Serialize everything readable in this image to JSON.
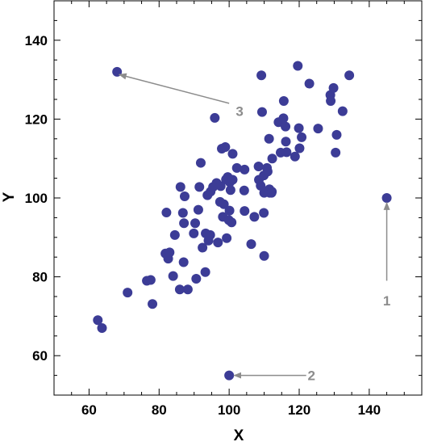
{
  "chart_data": {
    "type": "scatter",
    "xlabel": "X",
    "ylabel": "Y",
    "xlim": [
      50,
      155
    ],
    "ylim": [
      50,
      150
    ],
    "xticks": [
      60,
      80,
      100,
      120,
      140
    ],
    "yticks": [
      60,
      80,
      100,
      120,
      140
    ],
    "grid": false,
    "colors": {
      "point": "#3c3c96",
      "annotation": "#8c8c8c"
    },
    "points": [
      [
        62.5,
        69
      ],
      [
        63.7,
        67
      ],
      [
        71,
        76
      ],
      [
        76.5,
        79
      ],
      [
        77.6,
        79.2
      ],
      [
        78.1,
        73.1
      ],
      [
        81.8,
        85.9
      ],
      [
        82.1,
        96.3
      ],
      [
        82.6,
        84.6
      ],
      [
        83,
        86.2
      ],
      [
        84,
        80.2
      ],
      [
        84.5,
        90.6
      ],
      [
        85.9,
        76.8
      ],
      [
        86.1,
        102.8
      ],
      [
        86.8,
        96.2
      ],
      [
        87.1,
        93.6
      ],
      [
        87,
        83.7
      ],
      [
        87.3,
        100.4
      ],
      [
        88.2,
        76.8
      ],
      [
        89.9,
        91
      ],
      [
        90.3,
        93.6
      ],
      [
        90.6,
        79.5
      ],
      [
        91.2,
        97
      ],
      [
        91.5,
        102.8
      ],
      [
        91.9,
        108.9
      ],
      [
        92.4,
        87.4
      ],
      [
        93.2,
        81.2
      ],
      [
        93.3,
        91
      ],
      [
        93.8,
        100.7
      ],
      [
        94.1,
        89.2
      ],
      [
        94.6,
        90.6
      ],
      [
        94.7,
        101.6
      ],
      [
        95.4,
        102.8
      ],
      [
        95.9,
        120.3
      ],
      [
        96.4,
        103.8
      ],
      [
        96.8,
        88.7
      ],
      [
        97.4,
        99
      ],
      [
        97.6,
        103
      ],
      [
        97.9,
        112.5
      ],
      [
        98.2,
        95.2
      ],
      [
        98.5,
        98.4
      ],
      [
        98.9,
        112.9
      ],
      [
        99.1,
        104.7
      ],
      [
        99.3,
        89.8
      ],
      [
        99.6,
        105.3
      ],
      [
        99.9,
        94.4
      ],
      [
        100.1,
        96.8
      ],
      [
        100.2,
        104
      ],
      [
        100.4,
        102
      ],
      [
        100.7,
        93.8
      ],
      [
        101,
        111.2
      ],
      [
        101,
        104.6
      ],
      [
        102.2,
        107.6
      ],
      [
        104.3,
        101.9
      ],
      [
        104.4,
        96.7
      ],
      [
        104.4,
        107.2
      ],
      [
        106.3,
        88.3
      ],
      [
        107.2,
        95.2
      ],
      [
        108.4,
        108
      ],
      [
        108.5,
        104.6
      ],
      [
        109,
        103.1
      ],
      [
        109.2,
        131.1
      ],
      [
        109.4,
        121.8
      ],
      [
        109.9,
        105.7
      ],
      [
        109.9,
        96.2
      ],
      [
        110,
        85.3
      ],
      [
        110,
        101.3
      ],
      [
        110.8,
        107.6
      ],
      [
        111,
        106.7
      ],
      [
        111.4,
        115
      ],
      [
        111.5,
        102.2
      ],
      [
        111.6,
        101.3
      ],
      [
        112.1,
        101.3
      ],
      [
        112.2,
        101.6
      ],
      [
        112.3,
        110
      ],
      [
        114.1,
        119.2
      ],
      [
        114.7,
        111.5
      ],
      [
        115.5,
        120.2
      ],
      [
        115.6,
        124.6
      ],
      [
        116.1,
        118.1
      ],
      [
        116.2,
        114.3
      ],
      [
        116.4,
        111.6
      ],
      [
        118.8,
        110.5
      ],
      [
        119.6,
        133.5
      ],
      [
        119.9,
        117.7
      ],
      [
        120.1,
        112.6
      ],
      [
        120.7,
        115.4
      ],
      [
        122.9,
        129
      ],
      [
        125.4,
        117.6
      ],
      [
        128.9,
        126.1
      ],
      [
        129,
        124.6
      ],
      [
        129.8,
        127.9
      ],
      [
        130.4,
        111.5
      ],
      [
        130.7,
        116
      ],
      [
        132.4,
        122
      ],
      [
        134.3,
        131.1
      ],
      [
        68,
        132
      ],
      [
        145,
        100
      ],
      [
        100,
        55
      ]
    ],
    "annotations": [
      {
        "label": "3",
        "text_x": 103,
        "text_y": 122,
        "arrow_from": [
          100,
          124
        ],
        "arrow_to": [
          68.6,
          131.3
        ]
      },
      {
        "label": "1",
        "text_x": 145,
        "text_y": 74,
        "arrow_from": [
          145,
          79
        ],
        "arrow_to": [
          145,
          98.8
        ]
      },
      {
        "label": "2",
        "text_x": 123.5,
        "text_y": 55,
        "arrow_from": [
          122,
          55
        ],
        "arrow_to": [
          101.4,
          55
        ]
      }
    ]
  }
}
